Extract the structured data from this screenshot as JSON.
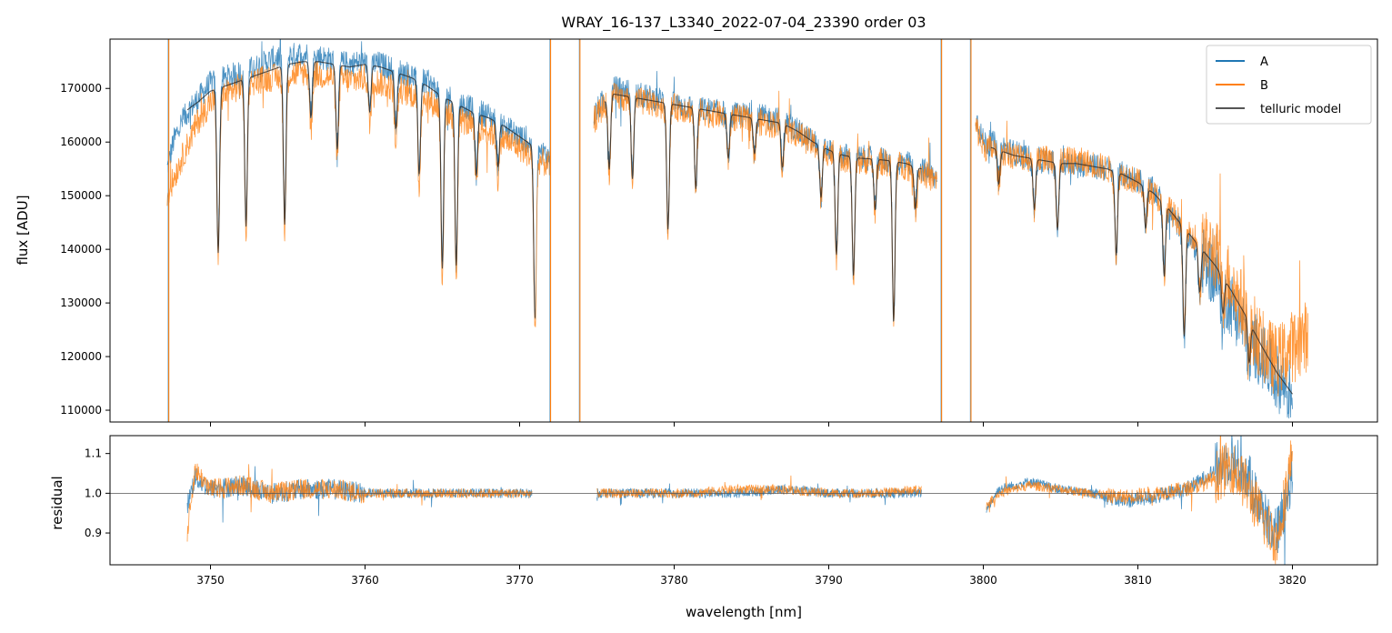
{
  "chart_data": [
    {
      "type": "line",
      "title": "WRAY_16-137_L3340_2022-07-04_23390  order 03",
      "xlabel": "",
      "ylabel": "flux [ADU]",
      "xlim": [
        3743.5,
        3825.5
      ],
      "ylim": [
        107800,
        179200
      ],
      "x_ticks": [
        3750,
        3760,
        3770,
        3780,
        3790,
        3800,
        3810,
        3820
      ],
      "y_ticks": [
        110000,
        120000,
        130000,
        140000,
        150000,
        160000,
        170000
      ],
      "y_tick_labels": [
        "110000",
        "120000",
        "130000",
        "140000",
        "150000",
        "160000",
        "170000"
      ],
      "legend": {
        "position": "top-right",
        "entries": [
          "A",
          "B",
          "telluric model"
        ]
      },
      "colors": {
        "A": "#1f77b4",
        "B": "#ff7f0e",
        "telluric model": "#222222"
      },
      "series": [
        {
          "name": "A",
          "segments": [
            {
              "x": [
                3747.2,
                3747.6,
                3748.0,
                3748.6,
                3749.2,
                3750.0,
                3751.0,
                3752.0,
                3753.0,
                3754.0,
                3755.0,
                3756.0,
                3757.0,
                3758.0,
                3759.0,
                3760.0,
                3761.0,
                3762.0,
                3763.0,
                3764.0,
                3765.0,
                3766.0,
                3767.0,
                3768.0,
                3769.0,
                3770.0,
                3771.0,
                3772.0
              ],
              "y": [
                155000,
                160000,
                163000,
                166000,
                168000,
                171000,
                172000,
                173000,
                174000,
                175500,
                176000,
                176500,
                176000,
                175000,
                174500,
                175000,
                174500,
                173500,
                172500,
                171000,
                169000,
                167500,
                166000,
                165000,
                163000,
                161000,
                159000,
                157000
              ]
            },
            {
              "x": [
                3774.8,
                3775.5,
                3776.0,
                3777.0,
                3778.0,
                3779.0,
                3780.0,
                3781.0,
                3782.0,
                3783.0,
                3784.0,
                3785.0,
                3786.0,
                3787.0,
                3788.0,
                3789.0,
                3790.0,
                3791.0,
                3792.0,
                3793.0,
                3794.0,
                3795.0,
                3796.0,
                3797.0
              ],
              "y": [
                165000,
                168000,
                170000,
                169500,
                168500,
                168000,
                167000,
                166500,
                166000,
                165500,
                165000,
                165000,
                164500,
                164000,
                162000,
                160000,
                158500,
                157500,
                157000,
                157000,
                156500,
                156000,
                155000,
                153000
              ]
            },
            {
              "x": [
                3799.5,
                3800.0,
                3801.0,
                3802.0,
                3803.0,
                3804.0,
                3805.0,
                3806.0,
                3807.0,
                3808.0,
                3809.0,
                3810.0,
                3811.0,
                3812.0,
                3813.0,
                3814.0,
                3815.0,
                3816.0,
                3817.0,
                3818.0,
                3819.0,
                3820.0
              ],
              "y": [
                165000,
                160000,
                159500,
                158000,
                157000,
                156500,
                156000,
                156000,
                155500,
                155000,
                154000,
                153000,
                151000,
                147000,
                143000,
                139000,
                135000,
                130000,
                125000,
                120000,
                116000,
                113000
              ]
            }
          ]
        },
        {
          "name": "B",
          "segments": [
            {
              "x": [
                3747.2,
                3747.6,
                3748.0,
                3748.6,
                3749.2,
                3750.0,
                3751.0,
                3752.0,
                3753.0,
                3754.0,
                3755.0,
                3756.0,
                3757.0,
                3758.0,
                3759.0,
                3760.0,
                3761.0,
                3762.0,
                3763.0,
                3764.0,
                3765.0,
                3766.0,
                3767.0,
                3768.0,
                3769.0,
                3770.0,
                3771.0,
                3772.0
              ],
              "y": [
                150000,
                153000,
                156000,
                160000,
                164000,
                167500,
                169000,
                170500,
                171500,
                172000,
                172500,
                173000,
                172500,
                172000,
                171500,
                172000,
                171000,
                170000,
                169000,
                168000,
                166000,
                164500,
                163000,
                162000,
                160500,
                159000,
                157000,
                155500
              ]
            },
            {
              "x": [
                3774.8,
                3775.5,
                3776.0,
                3777.0,
                3778.0,
                3779.0,
                3780.0,
                3781.0,
                3782.0,
                3783.0,
                3784.0,
                3785.0,
                3786.0,
                3787.0,
                3788.0,
                3789.0,
                3790.0,
                3791.0,
                3792.0,
                3793.0,
                3794.0,
                3795.0,
                3796.0,
                3797.0
              ],
              "y": [
                164000,
                167000,
                168500,
                168000,
                167500,
                167000,
                166500,
                166000,
                165500,
                165000,
                164500,
                164000,
                163500,
                163000,
                161500,
                159500,
                158000,
                157000,
                156500,
                156500,
                156000,
                155500,
                154500,
                152500
              ]
            },
            {
              "x": [
                3799.5,
                3800.0,
                3801.0,
                3802.0,
                3803.0,
                3804.0,
                3805.0,
                3806.0,
                3807.0,
                3808.0,
                3809.0,
                3810.0,
                3811.0,
                3812.0,
                3813.0,
                3814.0,
                3815.0,
                3816.0,
                3817.0,
                3818.0,
                3819.0,
                3820.0,
                3821.0
              ],
              "y": [
                163000,
                159000,
                158500,
                157500,
                157000,
                157000,
                156500,
                156500,
                156000,
                155000,
                154000,
                152500,
                150500,
                147500,
                144000,
                141500,
                139000,
                134000,
                128000,
                122000,
                119000,
                122000,
                124000
              ]
            }
          ]
        },
        {
          "name": "telluric model",
          "segments": [
            {
              "x": [
                3748.5,
                3749.2,
                3750.0,
                3751.0,
                3752.0,
                3753.0,
                3754.0,
                3755.0,
                3756.0,
                3757.0,
                3758.0,
                3759.0,
                3760.0,
                3761.0,
                3762.0,
                3763.0,
                3764.0,
                3765.0,
                3766.0,
                3767.0,
                3768.0,
                3769.0,
                3770.0,
                3771.0
              ],
              "y": [
                166000,
                167500,
                169500,
                170500,
                171500,
                172500,
                173500,
                174500,
                175000,
                175000,
                174500,
                174000,
                174500,
                174000,
                173000,
                172000,
                170500,
                168500,
                167000,
                165500,
                164500,
                163000,
                161000,
                159000
              ]
            },
            {
              "x": [
                3775.5,
                3776.0,
                3777.0,
                3778.0,
                3779.0,
                3780.0,
                3781.0,
                3782.0,
                3783.0,
                3784.0,
                3785.0,
                3786.0,
                3787.0,
                3788.0,
                3789.0,
                3790.0,
                3791.0,
                3792.0,
                3793.0,
                3794.0,
                3795.0,
                3796.0
              ],
              "y": [
                167500,
                169000,
                168500,
                168000,
                167500,
                167000,
                166500,
                166000,
                165500,
                165000,
                164500,
                164000,
                163500,
                162000,
                160000,
                158500,
                157500,
                157000,
                156800,
                156500,
                156000,
                155000
              ]
            },
            {
              "x": [
                3800.5,
                3801.0,
                3802.0,
                3803.0,
                3804.0,
                3805.0,
                3806.0,
                3807.0,
                3808.0,
                3809.0,
                3810.0,
                3811.0,
                3812.0,
                3813.0,
                3814.0,
                3815.0,
                3816.0,
                3817.0,
                3818.0,
                3819.0,
                3820.0
              ],
              "y": [
                159000,
                158500,
                157500,
                157000,
                156500,
                156000,
                156000,
                155500,
                155000,
                154000,
                152500,
                150500,
                147500,
                144000,
                140500,
                137000,
                132500,
                127500,
                122000,
                117000,
                113000
              ]
            }
          ]
        }
      ],
      "annotations": [
        {
          "type": "vertical-line",
          "x": 3747.3,
          "color": "#ff7f0e"
        },
        {
          "type": "vertical-line",
          "x": 3772.0,
          "color": "#ff7f0e"
        },
        {
          "type": "vertical-line",
          "x": 3773.9,
          "color": "#ff7f0e"
        },
        {
          "type": "vertical-line",
          "x": 3797.3,
          "color": "#ff7f0e"
        },
        {
          "type": "vertical-line",
          "x": 3799.2,
          "color": "#ff7f0e"
        }
      ]
    },
    {
      "type": "line",
      "title": "",
      "xlabel": "wavelength [nm]",
      "ylabel": "residual",
      "xlim": [
        3743.5,
        3825.5
      ],
      "ylim": [
        0.82,
        1.145
      ],
      "x_ticks": [
        3750,
        3760,
        3770,
        3780,
        3790,
        3800,
        3810,
        3820
      ],
      "x_tick_labels": [
        "3750",
        "3760",
        "3770",
        "3780",
        "3790",
        "3800",
        "3810",
        "3820"
      ],
      "y_ticks": [
        0.9,
        1.0,
        1.1
      ],
      "y_tick_labels": [
        "0.9",
        "1.0",
        "1.1"
      ],
      "reference_line": 1.0,
      "series": [
        {
          "name": "A",
          "segments": [
            {
              "x": [
                3748.5,
                3749.0,
                3750.0,
                3752.0,
                3754.0,
                3756.0,
                3758.0,
                3760.0,
                3762.0,
                3764.0,
                3766.0,
                3768.0,
                3770.0,
                3770.8
              ],
              "y": [
                0.97,
                1.04,
                1.01,
                1.02,
                1.0,
                1.01,
                1.01,
                1.0,
                1.0,
                1.0,
                1.0,
                1.0,
                1.0,
                1.0
              ]
            },
            {
              "x": [
                3775.0,
                3778.0,
                3781.0,
                3784.0,
                3787.0,
                3790.0,
                3793.0,
                3796.0
              ],
              "y": [
                1.0,
                1.0,
                1.0,
                1.0,
                1.01,
                1.0,
                1.0,
                1.0
              ]
            },
            {
              "x": [
                3800.2,
                3801.0,
                3803.0,
                3805.0,
                3807.0,
                3809.0,
                3811.0,
                3813.0,
                3814.0,
                3815.0,
                3816.0,
                3817.0,
                3818.0,
                3819.0,
                3820.0
              ],
              "y": [
                0.96,
                1.01,
                1.03,
                1.01,
                1.0,
                0.98,
                0.99,
                1.01,
                1.03,
                1.06,
                1.09,
                1.05,
                0.96,
                0.9,
                1.05
              ]
            }
          ]
        },
        {
          "name": "B",
          "segments": [
            {
              "x": [
                3748.5,
                3749.0,
                3750.0,
                3752.0,
                3754.0,
                3756.0,
                3758.0,
                3760.0,
                3762.0,
                3764.0,
                3766.0,
                3768.0,
                3770.0,
                3770.8
              ],
              "y": [
                0.9,
                1.06,
                1.01,
                1.02,
                1.0,
                1.01,
                1.01,
                1.0,
                1.0,
                1.0,
                1.0,
                1.0,
                1.0,
                1.0
              ]
            },
            {
              "x": [
                3775.0,
                3778.0,
                3781.0,
                3784.0,
                3787.0,
                3790.0,
                3793.0,
                3796.0
              ],
              "y": [
                1.0,
                1.0,
                1.0,
                1.01,
                1.01,
                1.0,
                1.0,
                1.01
              ]
            },
            {
              "x": [
                3800.2,
                3801.0,
                3803.0,
                3805.0,
                3807.0,
                3809.0,
                3811.0,
                3813.0,
                3814.0,
                3815.0,
                3816.0,
                3817.0,
                3818.0,
                3819.0,
                3820.0
              ],
              "y": [
                0.97,
                1.0,
                1.02,
                1.01,
                1.0,
                0.99,
                1.0,
                1.01,
                1.02,
                1.04,
                1.07,
                1.02,
                0.94,
                0.88,
                1.1
              ]
            }
          ]
        }
      ]
    }
  ]
}
